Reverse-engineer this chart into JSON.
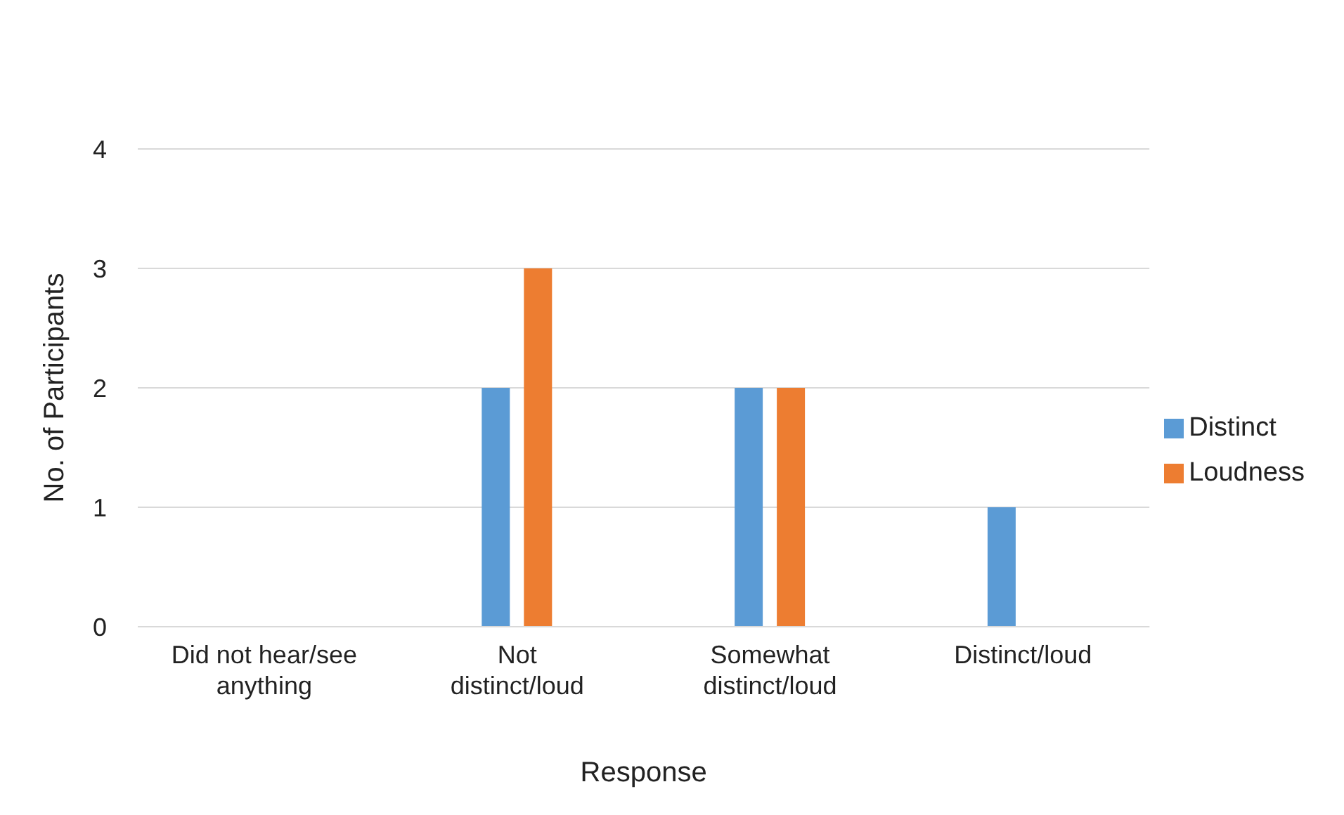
{
  "chart_data": {
    "type": "bar",
    "xlabel": "Response",
    "ylabel": "No. of Participants",
    "categories": [
      "Did not hear/see anything",
      "Not distinct/loud",
      "Somewhat distinct/loud",
      "Distinct/loud"
    ],
    "series": [
      {
        "name": "Distinct",
        "color": "#5b9bd5",
        "values": [
          0,
          2,
          2,
          1
        ]
      },
      {
        "name": "Loudness",
        "color": "#ed7d31",
        "values": [
          0,
          3,
          2,
          0
        ]
      }
    ],
    "ylim": [
      0,
      4
    ],
    "yticks": [
      0,
      1,
      2,
      3,
      4
    ],
    "grid": "y",
    "legend": "right"
  }
}
